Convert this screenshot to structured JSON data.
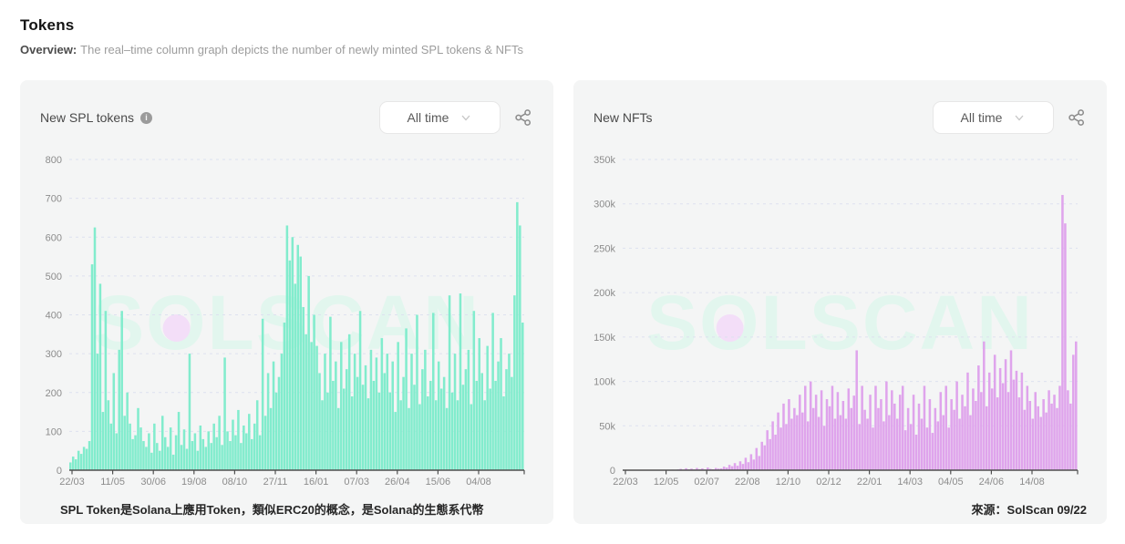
{
  "header": {
    "title": "Tokens",
    "overview_label": "Overview:",
    "overview_text": "The real–time column graph depicts the number of newly minted SPL tokens & NFTs"
  },
  "icons": {
    "info_glyph": "i"
  },
  "watermark": {
    "text": "SOLSCAN",
    "letter_color": "#e2f6ee",
    "dot_color": "#f3def8"
  },
  "chart_style": {
    "card_bg": "#f4f5f5",
    "grid_color": "#dde1ef",
    "axis_color": "#4f4f4f",
    "tick_label_color": "#8c8c8c",
    "legend_position": "none",
    "grid": "dashed-horizontal"
  },
  "chart_data": [
    {
      "type": "bar",
      "title": "New SPL tokens",
      "range_label": "All time",
      "footer": "SPL Token是Solana上應用Token，類似ERC20的概念，是Solana的生態系代幣",
      "bar_color": "#82eccd",
      "ylim": [
        0,
        800
      ],
      "y_step": 100,
      "y_unit": "",
      "x_tick_labels": [
        "22/03",
        "11/05",
        "30/06",
        "19/08",
        "08/10",
        "27/11",
        "16/01",
        "07/03",
        "26/04",
        "15/06",
        "04/08"
      ],
      "values": [
        20,
        35,
        28,
        50,
        42,
        60,
        55,
        75,
        530,
        625,
        300,
        480,
        150,
        410,
        180,
        120,
        250,
        95,
        310,
        410,
        140,
        200,
        120,
        80,
        90,
        160,
        110,
        75,
        60,
        95,
        45,
        120,
        70,
        50,
        140,
        85,
        60,
        110,
        40,
        90,
        150,
        65,
        105,
        55,
        300,
        75,
        95,
        50,
        115,
        80,
        60,
        100,
        70,
        120,
        85,
        140,
        65,
        290,
        100,
        75,
        130,
        90,
        155,
        70,
        115,
        95,
        145,
        80,
        120,
        180,
        90,
        390,
        140,
        250,
        160,
        280,
        200,
        240,
        300,
        380,
        630,
        540,
        600,
        480,
        580,
        550,
        420,
        350,
        500,
        330,
        400,
        320,
        250,
        180,
        300,
        200,
        395,
        230,
        280,
        160,
        330,
        210,
        260,
        350,
        190,
        300,
        240,
        410,
        220,
        270,
        185,
        310,
        230,
        290,
        200,
        340,
        250,
        300,
        200,
        280,
        150,
        330,
        180,
        240,
        365,
        160,
        300,
        220,
        400,
        170,
        260,
        310,
        190,
        230,
        405,
        180,
        280,
        210,
        240,
        160,
        450,
        200,
        300,
        180,
        455,
        220,
        260,
        310,
        170,
        410,
        230,
        340,
        250,
        180,
        320,
        210,
        405,
        230,
        280,
        340,
        190,
        260,
        300,
        240,
        450,
        690,
        630,
        380
      ]
    },
    {
      "type": "bar",
      "title": "New NFTs",
      "range_label": "All time",
      "footer": "來源：SolScan 09/22",
      "bar_color": "#dfa4ec",
      "ylim": [
        0,
        350000
      ],
      "y_step": 50000,
      "y_unit": "k",
      "x_tick_labels": [
        "22/03",
        "12/05",
        "02/07",
        "22/08",
        "12/10",
        "02/12",
        "22/01",
        "14/03",
        "04/05",
        "24/06",
        "14/08"
      ],
      "values": [
        0,
        100,
        0,
        200,
        0,
        150,
        300,
        0,
        250,
        100,
        400,
        150,
        0,
        300,
        200,
        500,
        250,
        150,
        600,
        300,
        800,
        1500,
        600,
        2200,
        1000,
        1800,
        900,
        2500,
        1200,
        2000,
        800,
        3000,
        1500,
        1000,
        2500,
        1800,
        2000,
        4000,
        3000,
        6000,
        4500,
        8000,
        5000,
        10000,
        7000,
        14000,
        9000,
        18000,
        12000,
        25000,
        16000,
        32000,
        28000,
        45000,
        35000,
        55000,
        40000,
        65000,
        48000,
        75000,
        52000,
        80000,
        58000,
        70000,
        62000,
        85000,
        65000,
        95000,
        55000,
        100000,
        70000,
        85000,
        60000,
        90000,
        50000,
        80000,
        72000,
        95000,
        58000,
        88000,
        62000,
        78000,
        58000,
        92000,
        70000,
        84000,
        135000,
        52000,
        95000,
        68000,
        58000,
        85000,
        48000,
        95000,
        70000,
        80000,
        55000,
        100000,
        62000,
        90000,
        75000,
        58000,
        85000,
        95000,
        45000,
        70000,
        52000,
        85000,
        40000,
        75000,
        58000,
        95000,
        48000,
        80000,
        42000,
        70000,
        55000,
        88000,
        62000,
        95000,
        48000,
        80000,
        68000,
        100000,
        58000,
        85000,
        72000,
        110000,
        62000,
        92000,
        78000,
        118000,
        88000,
        145000,
        72000,
        110000,
        92000,
        130000,
        82000,
        115000,
        98000,
        125000,
        88000,
        135000,
        102000,
        112000,
        82000,
        110000,
        68000,
        95000,
        78000,
        58000,
        88000,
        72000,
        60000,
        80000,
        65000,
        90000,
        75000,
        85000,
        70000,
        95000,
        310000,
        278000,
        90000,
        75000,
        130000,
        145000
      ]
    }
  ]
}
